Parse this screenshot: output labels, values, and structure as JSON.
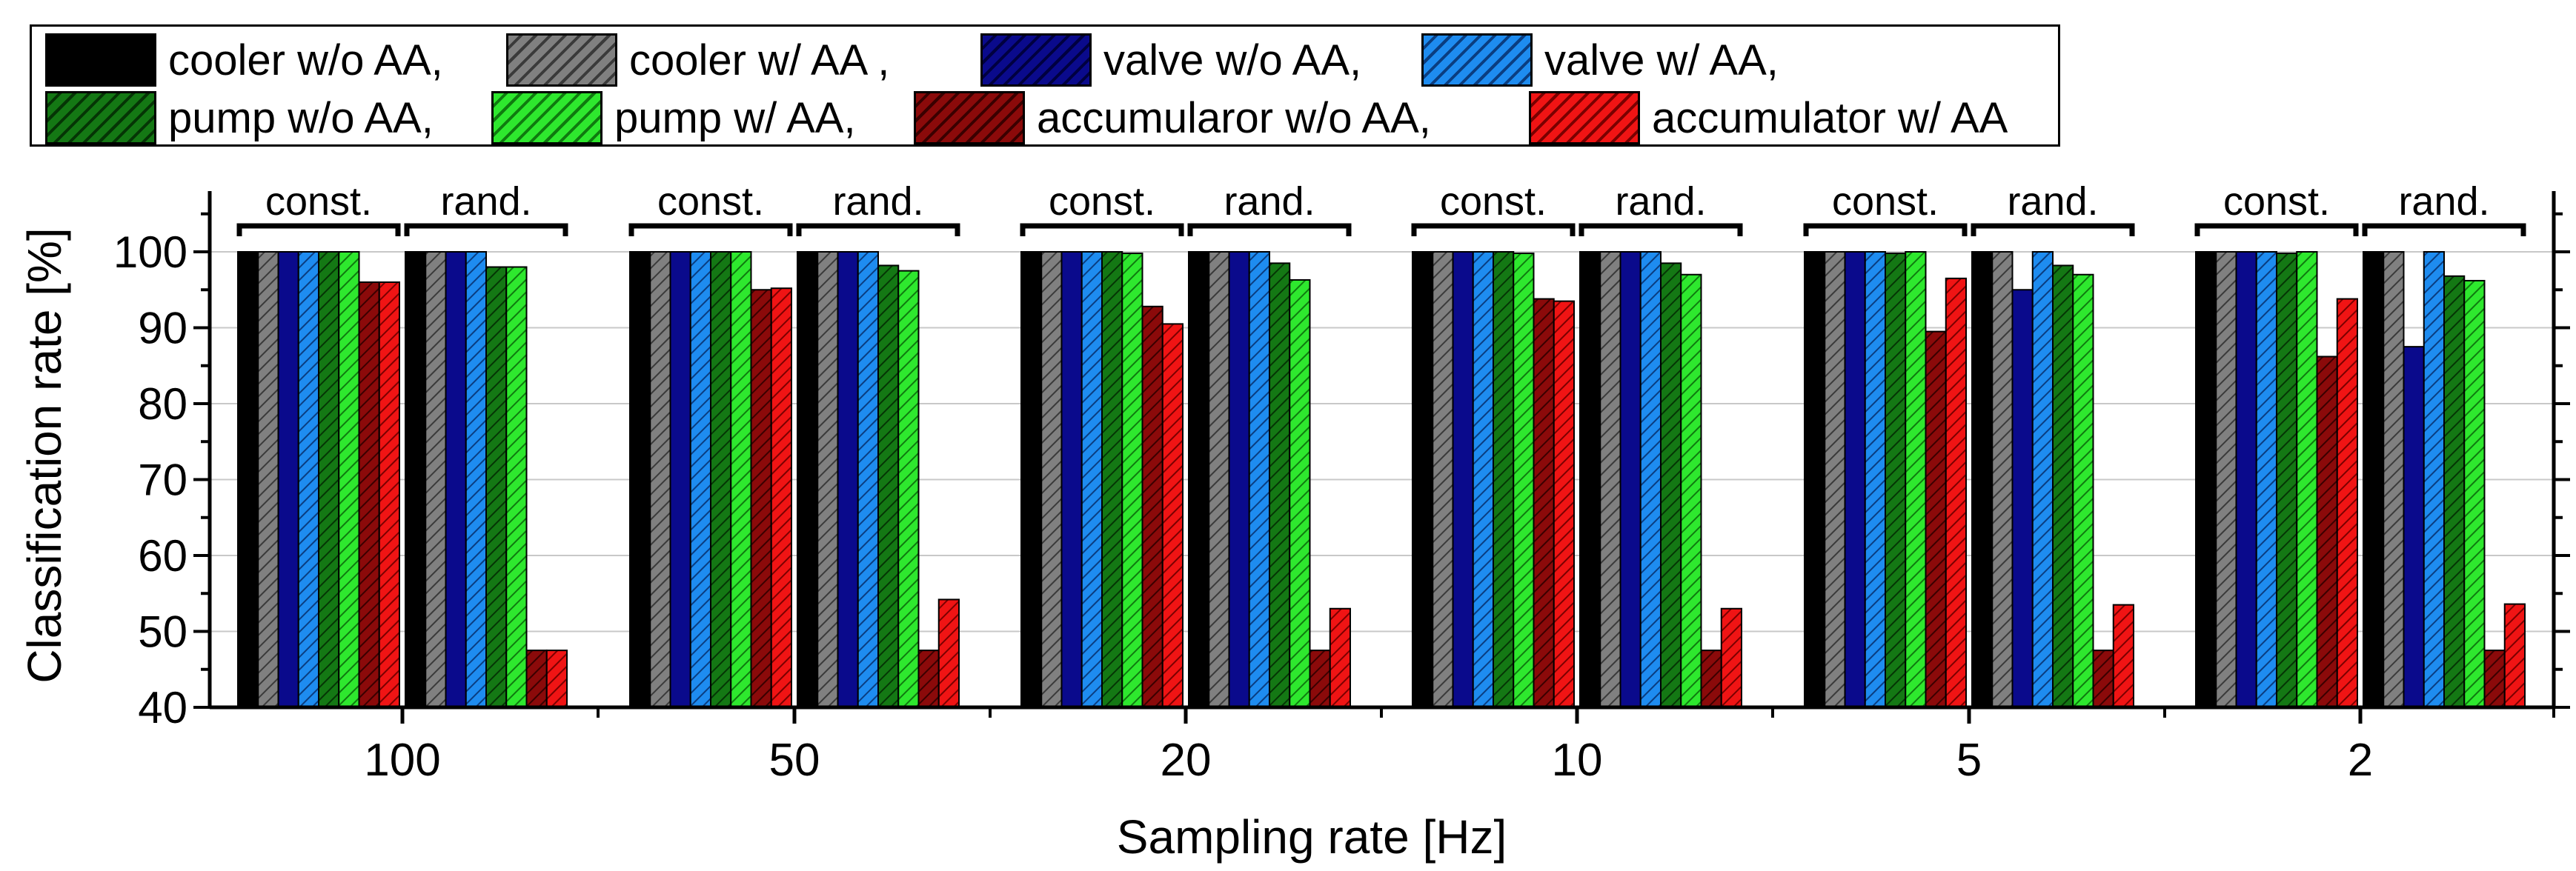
{
  "chart_data": {
    "type": "bar",
    "title": "",
    "xlabel": "Sampling rate [Hz]",
    "ylabel": "Classification rate [%]",
    "ylim": [
      40,
      108
    ],
    "y_ticks": [
      "40",
      "50",
      "60",
      "70",
      "80",
      "90",
      "100"
    ],
    "grid": true,
    "legend_position": "top-left",
    "categories": [
      "100",
      "50",
      "20",
      "10",
      "5",
      "2"
    ],
    "subgroups": [
      "const.",
      "rand."
    ],
    "legend_labels": [
      "cooler w/o AA,",
      "cooler w/ AA ,",
      "valve w/o AA,",
      "valve w/ AA,",
      "pump w/o AA,",
      "pump w/ AA,",
      "accumularor w/o AA,",
      "accumulator w/ AA"
    ],
    "series": [
      {
        "name": "cooler w/o AA",
        "color": "#000000",
        "hatched": false,
        "const": [
          100,
          100,
          100,
          100,
          100,
          100
        ],
        "rand": [
          100,
          100,
          100,
          100,
          100,
          100
        ]
      },
      {
        "name": "cooler w/ AA",
        "color": "#808080",
        "hatched": true,
        "const": [
          100,
          100,
          100,
          100,
          100,
          100
        ],
        "rand": [
          100,
          100,
          100,
          100,
          100,
          100
        ]
      },
      {
        "name": "valve w/o AA",
        "color": "#0a0a8c",
        "hatched": false,
        "const": [
          100,
          100,
          100,
          100,
          100,
          100
        ],
        "rand": [
          100,
          100,
          100,
          100,
          95,
          87.5
        ]
      },
      {
        "name": "valve w/ AA",
        "color": "#1e8cf0",
        "hatched": true,
        "const": [
          100,
          100,
          100,
          100,
          100,
          100
        ],
        "rand": [
          100,
          100,
          100,
          100,
          100,
          100
        ]
      },
      {
        "name": "pump w/o AA",
        "color": "#147814",
        "hatched": true,
        "const": [
          100,
          100,
          100,
          100,
          99.8,
          99.8
        ],
        "rand": [
          98,
          98.2,
          98.5,
          98.5,
          98.2,
          96.8
        ]
      },
      {
        "name": "pump w/ AA",
        "color": "#2ee82e",
        "hatched": true,
        "const": [
          100,
          100,
          99.8,
          99.8,
          100,
          100
        ],
        "rand": [
          98,
          97.5,
          96.3,
          97,
          97,
          96.2
        ]
      },
      {
        "name": "accumularor w/o AA",
        "color": "#8b0a0a",
        "hatched": true,
        "const": [
          96,
          95,
          92.8,
          93.8,
          89.5,
          86.2
        ],
        "rand": [
          47.5,
          47.5,
          47.5,
          47.5,
          47.5,
          47.5
        ]
      },
      {
        "name": "accumulator w/ AA",
        "color": "#f01414",
        "hatched": true,
        "const": [
          96,
          95.2,
          90.5,
          93.5,
          96.5,
          93.8
        ],
        "rand": [
          47.5,
          54.2,
          53,
          53,
          53.5,
          53.6
        ]
      }
    ]
  }
}
